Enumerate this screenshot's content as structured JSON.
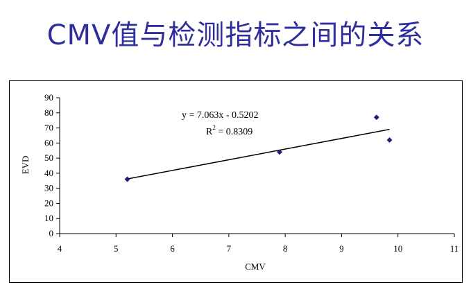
{
  "slide": {
    "title": "CMV值与检测指标之间的关系"
  },
  "chart_data": {
    "type": "scatter",
    "xlabel": "CMV",
    "ylabel": "EVD",
    "xlim": [
      4,
      11
    ],
    "ylim": [
      0,
      90
    ],
    "xticks": [
      4,
      5,
      6,
      7,
      8,
      9,
      10,
      11
    ],
    "yticks": [
      0,
      10,
      20,
      30,
      40,
      50,
      60,
      70,
      80,
      90
    ],
    "grid": false,
    "legend": "none",
    "marker_color": "#1f1f7a",
    "line_color": "#000000",
    "points": [
      {
        "x": 5.2,
        "y": 36
      },
      {
        "x": 7.9,
        "y": 54
      },
      {
        "x": 9.62,
        "y": 77
      },
      {
        "x": 9.85,
        "y": 62
      }
    ],
    "trendline": {
      "slope": 7.063,
      "intercept": -0.5202,
      "x_range": [
        5.2,
        9.85
      ],
      "equation": "y = 7.063x - 0.5202",
      "r2_prefix": "R",
      "r2_exp": "2",
      "r2_value": " = 0.8309"
    }
  }
}
